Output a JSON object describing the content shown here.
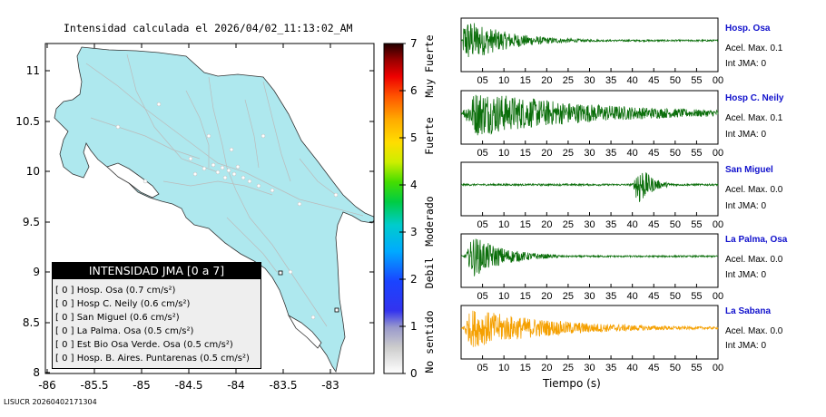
{
  "map": {
    "title": "Intensidad calculada el 2026/04/02_11:13:02_AM",
    "y_ticks": [
      "11",
      "10.5",
      "10",
      "9.5",
      "9",
      "8.5",
      "8"
    ],
    "x_ticks": [
      "-86",
      "-85.5",
      "-85",
      "-84.5",
      "-84",
      "-83.5",
      "-83"
    ]
  },
  "colorbar": {
    "ticks": [
      "7",
      "6",
      "5",
      "4",
      "3",
      "2",
      "1",
      "0"
    ],
    "categories": [
      "Muy Fuerte",
      "Fuerte",
      "Moderado",
      "Debil",
      "No sentido"
    ]
  },
  "legend": {
    "header": "INTENSIDAD JMA [0 a 7]",
    "rows": [
      "[ 0 ]  Hosp. Osa (0.7 cm/s²)",
      "[ 0 ]  Hosp C. Neily (0.6 cm/s²)",
      "[ 0 ]  San Miguel (0.6 cm/s²)",
      "[ 0 ]  La Palma. Osa (0.5 cm/s²)",
      "[ 0 ]  Est Bio Osa Verde. Osa (0.5 cm/s²)",
      "[ 0 ]  Hosp. B. Aires. Puntarenas (0.5 cm/s²)"
    ]
  },
  "chart_data": {
    "type": "line",
    "title": "Intensidad calculada el 2026/04/02_11:13:02_AM",
    "xlabel": "Tiempo (s)",
    "x_tick_labels": [
      "05",
      "10",
      "15",
      "20",
      "25",
      "30",
      "35",
      "40",
      "45",
      "50",
      "55",
      "00"
    ],
    "x_range": [
      0,
      60
    ],
    "series": [
      {
        "name": "Hosp. Osa",
        "acel_max": "Acel. Max. 0.1",
        "int_jma": "Int JMA: 0",
        "color": "#0a6e0a",
        "onset": 0.5,
        "peak_time": 1.5,
        "duration": 60,
        "amplitude": 0.9,
        "decay": 0.1
      },
      {
        "name": "Hosp C. Neily",
        "acel_max": "Acel. Max. 0.1",
        "int_jma": "Int JMA: 0",
        "color": "#0a6e0a",
        "onset": 0.5,
        "peak_time": 4,
        "duration": 60,
        "amplitude": 0.95,
        "decay": 0.035
      },
      {
        "name": "San Miguel",
        "acel_max": "Acel. Max. 0.0",
        "int_jma": "Int JMA: 0",
        "color": "#0a6e0a",
        "onset": 0.5,
        "peak_time": 41.5,
        "duration": 60,
        "amplitude": 0.95,
        "decay": 0.35
      },
      {
        "name": "La Palma, Osa",
        "acel_max": "Acel. Max. 0.0",
        "int_jma": "Int JMA: 0",
        "color": "#0a6e0a",
        "onset": 0.5,
        "peak_time": 3,
        "duration": 23,
        "amplitude": 0.85,
        "decay": 0.13
      },
      {
        "name": "La Sabana",
        "acel_max": "Acel. Max. 0.0",
        "int_jma": "Int JMA: 0",
        "color": "#f5a000",
        "onset": 0.5,
        "peak_time": 3,
        "duration": 60,
        "amplitude": 0.8,
        "decay": 0.05
      }
    ]
  },
  "footer": "LISUCR 20260402171304"
}
